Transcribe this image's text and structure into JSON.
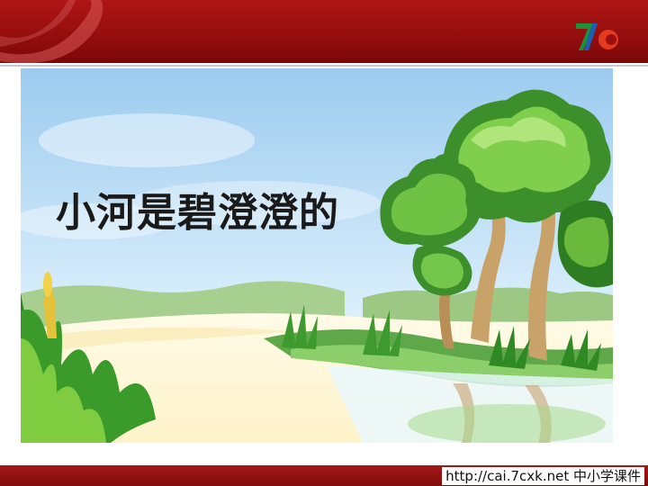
{
  "slide": {
    "title": "小河是碧澄澄的"
  },
  "footer": {
    "text": "http://cai.7cxk.net 中小学课件"
  },
  "logo": {
    "icon": "7c-logo-icon"
  },
  "colors": {
    "header": "#9e1010",
    "sky": "#bfe0f7",
    "tree_green": "#3f9a2c",
    "ground": "#fff8e0"
  }
}
